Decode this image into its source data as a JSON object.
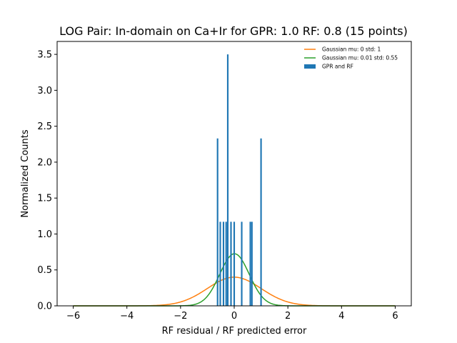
{
  "chart_data": {
    "type": "histogram",
    "title": "LOG Pair: In-domain on Ca+Ir for GPR: 1.0 RF: 0.8 (15 points)",
    "xlabel": "RF residual / RF predicted error",
    "ylabel": "Normalized Counts",
    "xlim": [
      -6.6,
      6.6
    ],
    "ylim": [
      0,
      3.68
    ],
    "xticks": [
      -6,
      -4,
      -2,
      0,
      2,
      4,
      6
    ],
    "xtick_labels": [
      "−6",
      "−4",
      "−2",
      "0",
      "2",
      "4",
      "6"
    ],
    "yticks": [
      0,
      0.5,
      1.0,
      1.5,
      2.0,
      2.5,
      3.0,
      3.5
    ],
    "ytick_labels": [
      "0.0",
      "0.5",
      "1.0",
      "1.5",
      "2.0",
      "2.5",
      "3.0",
      "3.5"
    ],
    "legend_position": "top-right",
    "series": [
      {
        "name": "Gaussian mu: 0 std: 1",
        "kind": "line",
        "color": "#ff7f0e",
        "mu": 0,
        "std": 1,
        "x_range": [
          -6,
          6
        ]
      },
      {
        "name": "Gaussian mu: 0.01 std: 0.55",
        "kind": "line",
        "color": "#2ca02c",
        "mu": 0.01,
        "std": 0.55,
        "x_range": [
          -6,
          6
        ]
      },
      {
        "name": "GPR and RF",
        "kind": "bar",
        "color": "#1f77b4",
        "bin_width": 0.057,
        "bars": [
          {
            "x": -0.62,
            "value": 2.33
          },
          {
            "x": -0.52,
            "value": 1.17
          },
          {
            "x": -0.4,
            "value": 1.17
          },
          {
            "x": -0.3,
            "value": 1.17
          },
          {
            "x": -0.24,
            "value": 3.5
          },
          {
            "x": -0.12,
            "value": 1.17
          },
          {
            "x": 0.0,
            "value": 1.17
          },
          {
            "x": 0.28,
            "value": 1.17
          },
          {
            "x": 0.6,
            "value": 1.17
          },
          {
            "x": 0.66,
            "value": 1.17
          },
          {
            "x": 1.0,
            "value": 2.33
          }
        ]
      }
    ]
  }
}
